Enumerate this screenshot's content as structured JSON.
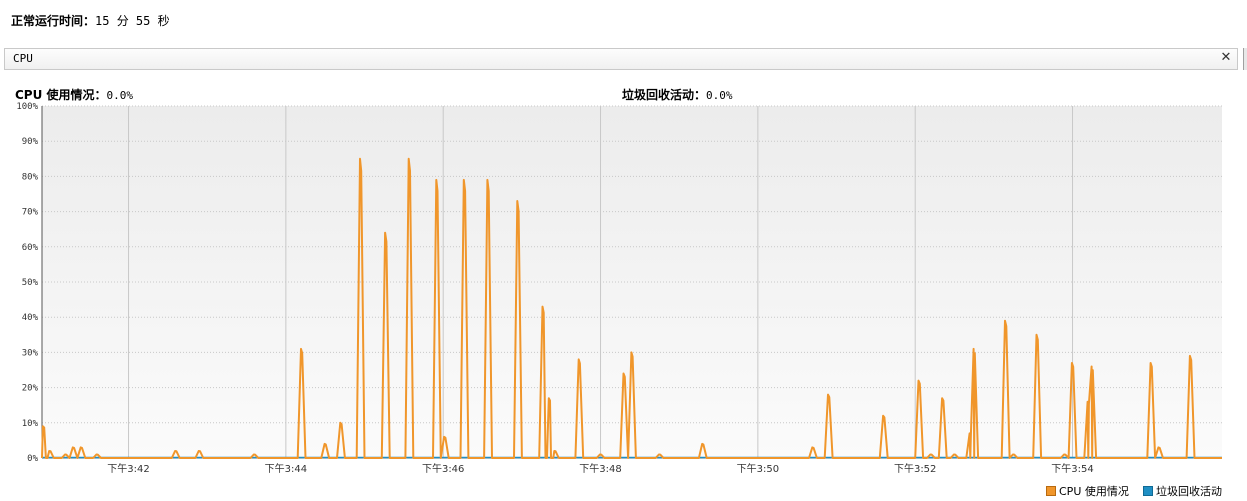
{
  "uptime": {
    "label": "正常运行时间：",
    "value": "15 分 55 秒"
  },
  "panel": {
    "title": "CPU",
    "close_icon": "close-icon"
  },
  "stats": {
    "cpu": {
      "label": "CPU 使用情况：",
      "value": "0.0%"
    },
    "gc": {
      "label": "垃圾回收活动：",
      "value": "0.0%"
    }
  },
  "colors": {
    "cpu": "#f0962b",
    "gc": "#1f8fc4"
  },
  "legend": {
    "cpu": "CPU 使用情况",
    "gc": "垃圾回收活动"
  },
  "chart_data": {
    "type": "line",
    "ylabel": "",
    "ylim": [
      0,
      100
    ],
    "y_ticks": [
      "0%",
      "10%",
      "20%",
      "30%",
      "40%",
      "50%",
      "60%",
      "70%",
      "80%",
      "90%",
      "100%"
    ],
    "x_range_minutes": [
      40.9,
      55.9
    ],
    "x_ticks": [
      {
        "t": 42,
        "label": "下午3:42"
      },
      {
        "t": 44,
        "label": "下午3:44"
      },
      {
        "t": 46,
        "label": "下午3:46"
      },
      {
        "t": 48,
        "label": "下午3:48"
      },
      {
        "t": 50,
        "label": "下午3:50"
      },
      {
        "t": 52,
        "label": "下午3:52"
      },
      {
        "t": 54,
        "label": "下午3:54"
      }
    ],
    "grid": true,
    "series": [
      {
        "name": "CPU 使用情况",
        "peaks": [
          [
            40.92,
            9
          ],
          [
            41.0,
            2
          ],
          [
            41.2,
            1
          ],
          [
            41.3,
            3
          ],
          [
            41.4,
            3
          ],
          [
            41.6,
            1
          ],
          [
            42.6,
            2
          ],
          [
            42.9,
            2
          ],
          [
            43.6,
            1
          ],
          [
            44.2,
            31
          ],
          [
            44.5,
            4
          ],
          [
            44.7,
            10
          ],
          [
            44.95,
            85
          ],
          [
            45.27,
            64
          ],
          [
            45.57,
            85
          ],
          [
            45.92,
            79
          ],
          [
            46.02,
            6
          ],
          [
            46.27,
            79
          ],
          [
            46.57,
            79
          ],
          [
            46.95,
            73
          ],
          [
            47.27,
            43
          ],
          [
            47.35,
            17
          ],
          [
            47.42,
            2
          ],
          [
            47.73,
            28
          ],
          [
            48.0,
            1
          ],
          [
            48.3,
            24
          ],
          [
            48.4,
            30
          ],
          [
            48.75,
            1
          ],
          [
            49.3,
            4
          ],
          [
            50.7,
            3
          ],
          [
            50.9,
            18
          ],
          [
            51.6,
            12
          ],
          [
            52.05,
            22
          ],
          [
            52.2,
            1
          ],
          [
            52.35,
            17
          ],
          [
            52.5,
            1
          ],
          [
            52.7,
            7
          ],
          [
            52.75,
            31
          ],
          [
            53.15,
            39
          ],
          [
            53.25,
            1
          ],
          [
            53.55,
            35
          ],
          [
            53.9,
            1
          ],
          [
            54.0,
            27
          ],
          [
            54.2,
            16
          ],
          [
            54.25,
            26
          ],
          [
            55.0,
            27
          ],
          [
            55.1,
            3
          ],
          [
            55.5,
            29
          ]
        ]
      },
      {
        "name": "垃圾回收活动",
        "peaks": []
      }
    ]
  }
}
